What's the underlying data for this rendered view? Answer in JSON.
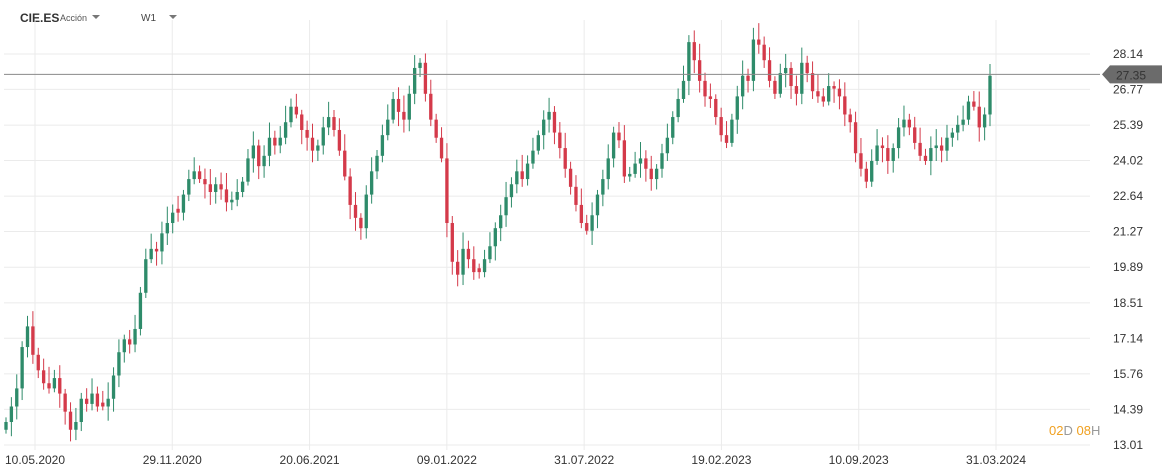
{
  "header": {
    "symbol": "CIE.ES",
    "instrument_type": "Acción",
    "timeframe": "W1"
  },
  "countdown": {
    "d_value": "02",
    "d_unit": "D",
    "h_value": "08",
    "h_unit": "H"
  },
  "colors": {
    "up": "#2e8b6a",
    "down": "#d43a4a",
    "price_label_bg": "#6b6b6b",
    "grid": "#ebebeb"
  },
  "chart_data": {
    "type": "candlestick",
    "interval": "weekly",
    "ylim": [
      13.01,
      29.0
    ],
    "yticks": [
      "13.01",
      "14.39",
      "15.76",
      "17.14",
      "18.51",
      "19.89",
      "21.27",
      "22.64",
      "24.02",
      "25.39",
      "26.77",
      "28.14"
    ],
    "xticks": [
      "10.05.2020",
      "29.11.2020",
      "20.06.2021",
      "09.01.2022",
      "31.07.2022",
      "19.02.2023",
      "10.09.2023",
      "31.03.2024"
    ],
    "current_price": "27.35",
    "closes": [
      13.9,
      14.5,
      15.2,
      16.8,
      17.6,
      16.5,
      15.9,
      15.4,
      15.2,
      15.6,
      15.0,
      14.3,
      13.6,
      13.9,
      14.8,
      14.6,
      15.0,
      14.5,
      14.5,
      14.8,
      15.7,
      16.6,
      17.1,
      16.9,
      17.5,
      18.9,
      20.2,
      20.6,
      20.5,
      21.2,
      21.6,
      22.0,
      22.0,
      22.7,
      23.3,
      23.6,
      23.3,
      23.1,
      22.8,
      23.1,
      22.9,
      22.4,
      22.5,
      22.8,
      23.2,
      24.1,
      24.6,
      23.8,
      24.2,
      24.9,
      24.6,
      24.9,
      25.5,
      26.1,
      25.8,
      25.2,
      24.9,
      24.4,
      24.6,
      25.3,
      25.7,
      25.2,
      24.4,
      23.4,
      22.3,
      21.8,
      21.4,
      22.7,
      23.6,
      24.2,
      25.0,
      25.6,
      26.4,
      25.9,
      25.6,
      26.6,
      27.6,
      27.8,
      26.6,
      25.6,
      24.9,
      24.1,
      21.6,
      20.1,
      19.6,
      20.6,
      20.2,
      19.7,
      19.7,
      20.2,
      20.7,
      21.4,
      21.9,
      22.6,
      23.1,
      23.6,
      23.3,
      23.9,
      24.4,
      25.0,
      25.6,
      25.9,
      25.1,
      24.5,
      23.7,
      23.0,
      22.3,
      21.6,
      21.3,
      21.9,
      22.7,
      23.3,
      24.1,
      25.1,
      24.8,
      23.4,
      23.5,
      23.9,
      24.1,
      23.7,
      23.3,
      23.7,
      24.3,
      24.9,
      25.7,
      26.4,
      27.1,
      28.6,
      27.9,
      27.1,
      26.5,
      26.4,
      25.7,
      25.0,
      24.7,
      25.6,
      26.5,
      27.3,
      27.1,
      28.7,
      28.5,
      27.9,
      27.1,
      26.6,
      27.4,
      27.6,
      26.9,
      26.6,
      27.8,
      27.4,
      26.7,
      26.5,
      26.3,
      26.9,
      26.8,
      26.5,
      25.8,
      25.5,
      24.3,
      23.7,
      23.2,
      24.0,
      24.6,
      24.5,
      24.0,
      24.5,
      25.3,
      25.6,
      25.3,
      24.7,
      24.2,
      24.0,
      24.5,
      24.6,
      24.4,
      24.9,
      25.1,
      25.4,
      25.6,
      26.3,
      26.1,
      25.3,
      25.8,
      27.3
    ]
  }
}
